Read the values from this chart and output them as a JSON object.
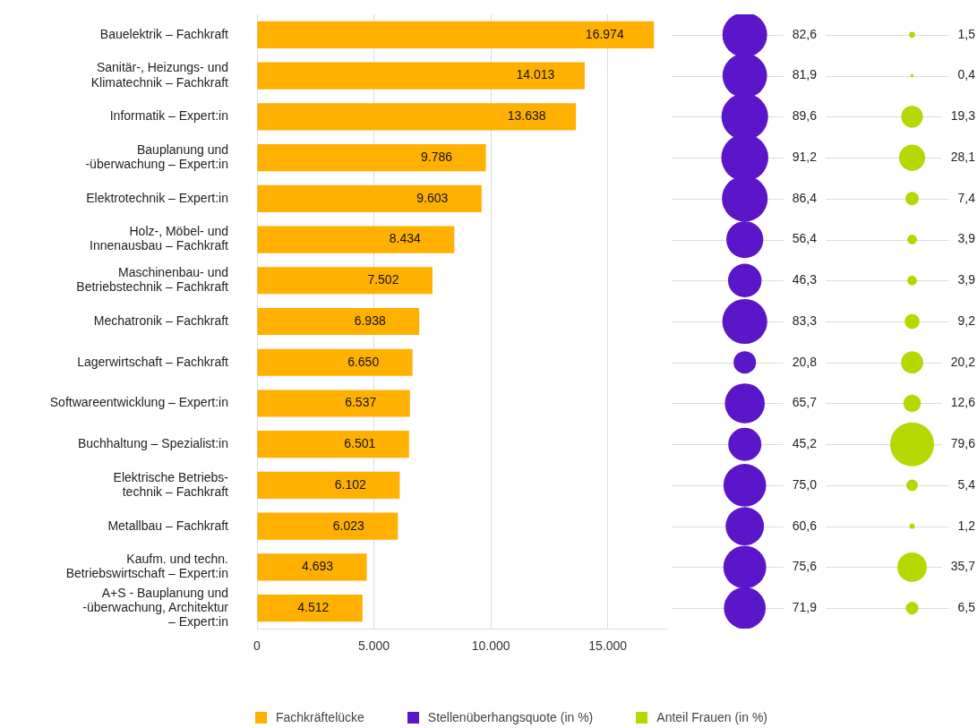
{
  "chart_data": [
    {
      "type": "bar",
      "orientation": "horizontal",
      "categories": [
        "Bauelektrik – Fachkraft",
        "Sanitär-, Heizungs- und\nKlimatechnik – Fachkraft",
        "Informatik – Expert:in",
        "Bauplanung und\n-überwachung – Expert:in",
        "Elektrotechnik – Expert:in",
        "Holz-, Möbel- und\nInnenausbau – Fachkraft",
        "Maschinenbau- und\nBetriebstechnik – Fachkraft",
        "Mechatronik – Fachkraft",
        "Lagerwirtschaft – Fachkraft",
        "Softwareentwicklung – Expert:in",
        "Buchhaltung – Spezialist:in",
        "Elektrische Betriebs-\ntechnik – Fachkraft",
        "Metallbau – Fachkraft",
        "Kaufm. und techn.\nBetriebswirtschaft – Expert:in",
        "A+S - Bauplanung und\n-überwachung, Architektur\n– Expert:in"
      ],
      "series": [
        {
          "name": "Fachkräftelücke",
          "color": "#ffb000",
          "values": [
            16974,
            14013,
            13638,
            9786,
            9603,
            8434,
            7502,
            6938,
            6650,
            6537,
            6501,
            6102,
            6023,
            4693,
            4512
          ],
          "value_labels": [
            "16.974",
            "14.013",
            "13.638",
            "9.786",
            "9.603",
            "8.434",
            "7.502",
            "6.938",
            "6.650",
            "6.537",
            "6.501",
            "6.102",
            "6.023",
            "4.693",
            "4.512"
          ]
        }
      ],
      "xlim": [
        0,
        17500
      ],
      "xticks": [
        0,
        {
          "value": 5000,
          "label": "5.000"
        },
        {
          "value": 10000,
          "label": "10.000"
        },
        {
          "value": 15000,
          "label": "15.000"
        }
      ],
      "grid": "x",
      "legend": "bottom"
    },
    {
      "type": "other",
      "series": [
        {
          "name": "Stellenüberhangsquote (in %)",
          "color": "#5a16c8",
          "values": [
            82.6,
            81.9,
            89.6,
            91.2,
            86.4,
            56.4,
            46.3,
            83.3,
            20.8,
            65.7,
            45.2,
            75.0,
            60.6,
            75.6,
            71.9
          ],
          "value_labels": [
            "82,6",
            "81,9",
            "89,6",
            "91,2",
            "86,4",
            "56,4",
            "46,3",
            "83,3",
            "20,8",
            "65,7",
            "45,2",
            "75,0",
            "60,6",
            "75,6",
            "71,9"
          ]
        }
      ],
      "legend": "bottom"
    },
    {
      "type": "other",
      "series": [
        {
          "name": "Anteil Frauen (in %)",
          "color": "#b5d900",
          "values": [
            1.5,
            0.4,
            19.3,
            28.1,
            7.4,
            3.9,
            3.9,
            9.2,
            20.2,
            12.6,
            79.6,
            5.4,
            1.2,
            35.7,
            6.5
          ],
          "value_labels": [
            "1,5",
            "0,4",
            "19,3",
            "28,1",
            "7,4",
            "3,9",
            "3,9",
            "9,2",
            "20,2",
            "12,6",
            "79,6",
            "5,4",
            "1,2",
            "35,7",
            "6,5"
          ]
        }
      ],
      "legend": "bottom"
    }
  ]
}
